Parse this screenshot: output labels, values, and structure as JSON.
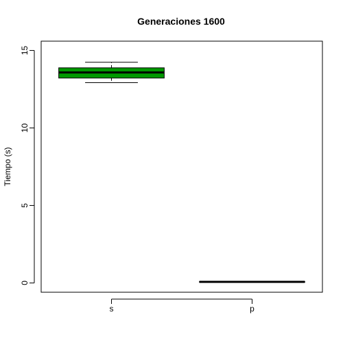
{
  "chart_data": {
    "type": "boxplot",
    "title": "Generaciones 1600",
    "xlabel": "",
    "ylabel": "Tiempo (s)",
    "ylim": [
      -0.6,
      15.6
    ],
    "yticks": [
      0,
      5,
      10,
      15
    ],
    "categories": [
      "s",
      "p"
    ],
    "boxes": [
      {
        "category": "s",
        "min": 12.92,
        "q1": 13.22,
        "median": 13.58,
        "q3": 13.88,
        "max": 14.24,
        "color": "#009900"
      },
      {
        "category": "p",
        "min": 0.07,
        "q1": 0.07,
        "median": 0.07,
        "q3": 0.08,
        "max": 0.08,
        "color": "#000000"
      }
    ],
    "grid": false,
    "legend": "none"
  }
}
